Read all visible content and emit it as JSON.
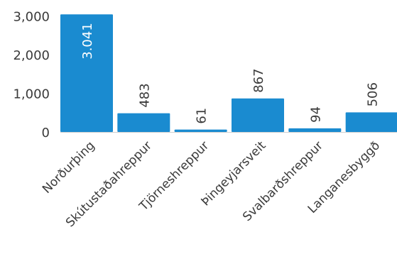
{
  "chart_data": {
    "type": "bar",
    "categories": [
      "Norðurþing",
      "Skútustaðahreppur",
      "Tjörneshreppur",
      "Þingeyjarsveit",
      "Svalbarðshreppur",
      "Langanesbyggð"
    ],
    "values": [
      3041,
      483,
      61,
      867,
      94,
      506
    ],
    "data_labels": [
      "3.041",
      "483",
      "61",
      "867",
      "94",
      "506"
    ],
    "y_ticks": [
      0,
      1000,
      2000,
      3000
    ],
    "y_tick_labels": [
      "0",
      "1,000",
      "2,000",
      "3,000"
    ],
    "ylim": [
      0,
      3100
    ],
    "title": "",
    "xlabel": "",
    "ylabel": "",
    "grid": false,
    "colors": {
      "bar": "#1a8bd0",
      "label_inside": "#ffffff",
      "label_outside": "#3a3a3a"
    }
  }
}
